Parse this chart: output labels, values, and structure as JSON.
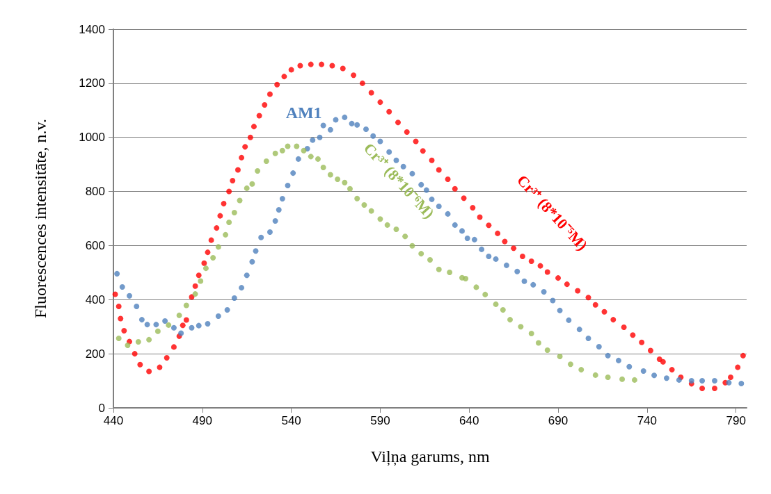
{
  "chart_data": {
    "type": "scatter",
    "xlabel": "Viļņa garums, nm",
    "ylabel": "Fluorescences intensitāte, n.v.",
    "xlim": [
      440,
      796
    ],
    "xticks": [
      440,
      490,
      540,
      590,
      640,
      690,
      740,
      790
    ],
    "ylim": [
      0,
      1400
    ],
    "yticks": [
      0,
      200,
      400,
      600,
      800,
      1000,
      1200,
      1400
    ],
    "grid": "y",
    "marker": "circle",
    "series": [
      {
        "name": "Cr³⁺ (8*10⁻⁵M)",
        "color": "#ff0000",
        "x": [
          441,
          443,
          444,
          446,
          449,
          452,
          455,
          460,
          466,
          470,
          474,
          477,
          479,
          481,
          484,
          486,
          488,
          491,
          493,
          495,
          498,
          500,
          502,
          505,
          507,
          510,
          512,
          514,
          517,
          519,
          522,
          525,
          528,
          532,
          536,
          540,
          545,
          551,
          557,
          563,
          569,
          575,
          580,
          585,
          590,
          595,
          600,
          605,
          610,
          614,
          619,
          623,
          628,
          632,
          637,
          642,
          646,
          651,
          656,
          660,
          665,
          670,
          675,
          680,
          684,
          690,
          695,
          701,
          707,
          711,
          716,
          721,
          727,
          732,
          737,
          742,
          747,
          749,
          754,
          759,
          765,
          771,
          778,
          784,
          787,
          791,
          794
        ],
        "values": [
          420,
          375,
          330,
          285,
          245,
          200,
          160,
          135,
          150,
          185,
          225,
          265,
          305,
          325,
          410,
          450,
          490,
          535,
          575,
          620,
          665,
          710,
          755,
          800,
          840,
          880,
          925,
          965,
          1000,
          1040,
          1080,
          1120,
          1160,
          1195,
          1225,
          1250,
          1265,
          1270,
          1270,
          1265,
          1255,
          1230,
          1200,
          1165,
          1130,
          1095,
          1055,
          1020,
          985,
          950,
          915,
          880,
          845,
          810,
          775,
          740,
          705,
          675,
          645,
          615,
          590,
          560,
          542,
          525,
          502,
          480,
          457,
          433,
          408,
          381,
          355,
          326,
          298,
          269,
          242,
          212,
          180,
          170,
          141,
          113,
          89,
          72,
          72,
          93,
          113,
          150,
          193
        ]
      },
      {
        "name": "AM1",
        "color": "#4f81bd",
        "x": [
          442,
          445,
          449,
          453,
          456,
          459,
          464,
          469,
          474,
          478,
          484,
          488,
          493,
          499,
          504,
          508,
          512,
          515,
          518,
          520,
          523,
          528,
          531,
          533,
          535,
          538,
          541,
          544,
          549,
          552,
          556,
          558,
          562,
          565,
          570,
          574,
          577,
          582,
          586,
          590,
          595,
          599,
          603,
          608,
          613,
          616,
          619,
          623,
          628,
          632,
          636,
          639,
          643,
          647,
          651,
          655,
          661,
          667,
          671,
          676,
          682,
          687,
          691,
          696,
          702,
          707,
          713,
          718,
          724,
          730,
          738,
          744,
          751,
          758,
          765,
          771,
          778,
          786,
          793
        ],
        "values": [
          496,
          447,
          414,
          375,
          326,
          308,
          308,
          321,
          296,
          276,
          296,
          304,
          311,
          339,
          362,
          406,
          444,
          490,
          540,
          580,
          630,
          650,
          691,
          732,
          773,
          822,
          868,
          920,
          958,
          990,
          1000,
          1044,
          1028,
          1065,
          1074,
          1051,
          1046,
          1030,
          1005,
          985,
          946,
          915,
          892,
          866,
          825,
          805,
          771,
          745,
          717,
          676,
          654,
          627,
          622,
          586,
          560,
          550,
          527,
          504,
          468,
          455,
          429,
          397,
          360,
          324,
          290,
          257,
          226,
          193,
          175,
          152,
          136,
          120,
          110,
          103,
          100,
          100,
          100,
          93,
          90
        ]
      },
      {
        "name": "Cr³⁺ (8*10⁻⁶M)",
        "color": "#9bbb59",
        "x": [
          443,
          448,
          454,
          460,
          465,
          471,
          477,
          481,
          486,
          489,
          492,
          496,
          499,
          503,
          505,
          508,
          511,
          515,
          518,
          521,
          526,
          531,
          535,
          538,
          543,
          547,
          551,
          555,
          558,
          562,
          566,
          570,
          573,
          577,
          581,
          585,
          590,
          594,
          599,
          604,
          608,
          613,
          618,
          623,
          629,
          636,
          638,
          644,
          649,
          655,
          659,
          663,
          669,
          675,
          679,
          684,
          691,
          697,
          703,
          711,
          718,
          726,
          733
        ],
        "values": [
          257,
          231,
          244,
          252,
          283,
          306,
          342,
          379,
          421,
          469,
          516,
          555,
          595,
          640,
          686,
          722,
          767,
          812,
          828,
          876,
          912,
          941,
          951,
          967,
          967,
          951,
          929,
          920,
          889,
          862,
          845,
          833,
          810,
          774,
          750,
          728,
          698,
          676,
          660,
          634,
          599,
          570,
          547,
          512,
          501,
          481,
          478,
          446,
          419,
          383,
          362,
          326,
          300,
          275,
          240,
          213,
          190,
          161,
          141,
          121,
          113,
          106,
          103
        ]
      }
    ]
  }
}
